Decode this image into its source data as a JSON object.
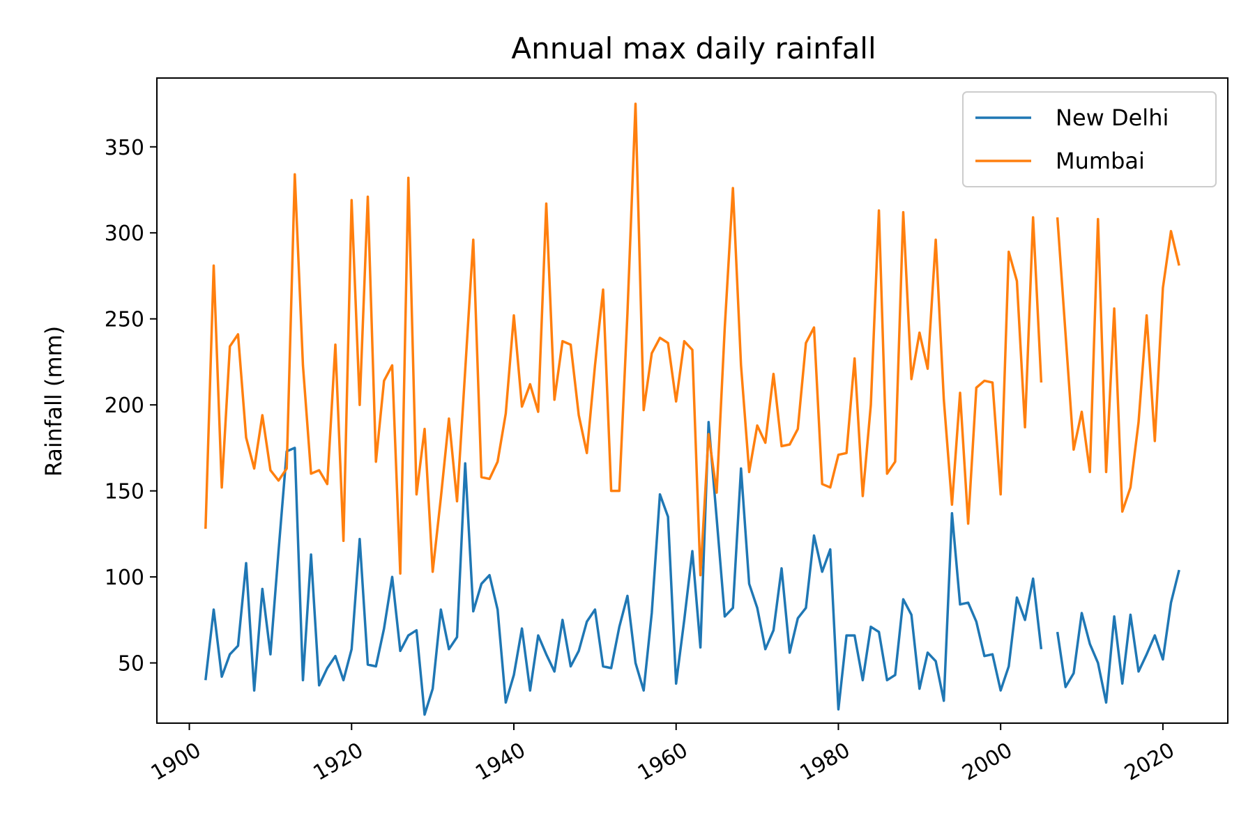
{
  "chart_data": {
    "type": "line",
    "title": "Annual max daily rainfall",
    "xlabel": "",
    "ylabel": "Rainfall (mm)",
    "xlim": [
      1896,
      2028
    ],
    "ylim": [
      15,
      390
    ],
    "x_ticks": [
      1900,
      1920,
      1940,
      1960,
      1980,
      2000,
      2020
    ],
    "y_ticks": [
      50,
      100,
      150,
      200,
      250,
      300,
      350
    ],
    "legend_position": "top-right",
    "grid": false,
    "x": [
      1902,
      1903,
      1904,
      1905,
      1906,
      1907,
      1908,
      1909,
      1910,
      1911,
      1912,
      1913,
      1914,
      1915,
      1916,
      1917,
      1918,
      1919,
      1920,
      1921,
      1922,
      1923,
      1924,
      1925,
      1926,
      1927,
      1928,
      1929,
      1930,
      1931,
      1932,
      1933,
      1934,
      1935,
      1936,
      1937,
      1938,
      1939,
      1940,
      1941,
      1942,
      1943,
      1944,
      1945,
      1946,
      1947,
      1948,
      1949,
      1950,
      1951,
      1952,
      1953,
      1954,
      1955,
      1956,
      1957,
      1958,
      1959,
      1960,
      1961,
      1962,
      1963,
      1964,
      1965,
      1966,
      1967,
      1968,
      1969,
      1970,
      1971,
      1972,
      1973,
      1974,
      1975,
      1976,
      1977,
      1978,
      1979,
      1980,
      1981,
      1982,
      1983,
      1984,
      1985,
      1986,
      1987,
      1988,
      1989,
      1990,
      1991,
      1992,
      1993,
      1994,
      1995,
      1996,
      1997,
      1998,
      1999,
      2000,
      2001,
      2002,
      2003,
      2004,
      2005,
      2006,
      2007,
      2008,
      2009,
      2010,
      2011,
      2012,
      2013,
      2014,
      2015,
      2016,
      2017,
      2018,
      2019,
      2020,
      2021,
      2022
    ],
    "series": [
      {
        "name": "New Delhi",
        "color": "#1f77b4",
        "values": [
          40,
          81,
          42,
          55,
          60,
          108,
          34,
          93,
          55,
          115,
          173,
          175,
          40,
          113,
          37,
          47,
          54,
          40,
          58,
          122,
          49,
          48,
          70,
          100,
          57,
          66,
          69,
          20,
          35,
          81,
          58,
          65,
          166,
          80,
          96,
          101,
          81,
          27,
          43,
          70,
          34,
          66,
          55,
          45,
          75,
          48,
          57,
          74,
          81,
          48,
          47,
          71,
          89,
          50,
          34,
          79,
          148,
          135,
          38,
          75,
          115,
          59,
          190,
          134,
          77,
          82,
          163,
          96,
          82,
          58,
          69,
          105,
          56,
          76,
          82,
          124,
          103,
          116,
          23,
          66,
          66,
          40,
          71,
          68,
          40,
          43,
          87,
          78,
          35,
          56,
          51,
          28,
          137,
          84,
          85,
          74,
          54,
          55,
          34,
          48,
          88,
          75,
          99,
          58,
          null,
          68,
          36,
          44,
          79,
          61,
          50,
          27,
          77,
          38,
          78,
          45,
          55,
          66,
          52,
          85,
          104
        ]
      },
      {
        "name": "Mumbai",
        "color": "#ff7f0e",
        "values": [
          128,
          281,
          152,
          234,
          241,
          181,
          163,
          194,
          162,
          156,
          163,
          334,
          223,
          160,
          162,
          154,
          235,
          121,
          319,
          200,
          321,
          167,
          214,
          223,
          102,
          332,
          148,
          186,
          103,
          146,
          192,
          144,
          220,
          296,
          158,
          157,
          167,
          195,
          252,
          199,
          212,
          196,
          317,
          203,
          237,
          235,
          194,
          172,
          223,
          267,
          150,
          150,
          253,
          375,
          197,
          230,
          239,
          236,
          202,
          237,
          232,
          101,
          183,
          149,
          245,
          326,
          223,
          161,
          188,
          178,
          218,
          176,
          177,
          186,
          236,
          245,
          154,
          152,
          171,
          172,
          227,
          147,
          200,
          313,
          160,
          167,
          312,
          215,
          242,
          221,
          296,
          203,
          142,
          207,
          131,
          210,
          214,
          213,
          148,
          289,
          272,
          187,
          309,
          213,
          null,
          309,
          241,
          174,
          196,
          161,
          308,
          161,
          256,
          138,
          152,
          190,
          252,
          179,
          268,
          301,
          281
        ]
      }
    ]
  }
}
